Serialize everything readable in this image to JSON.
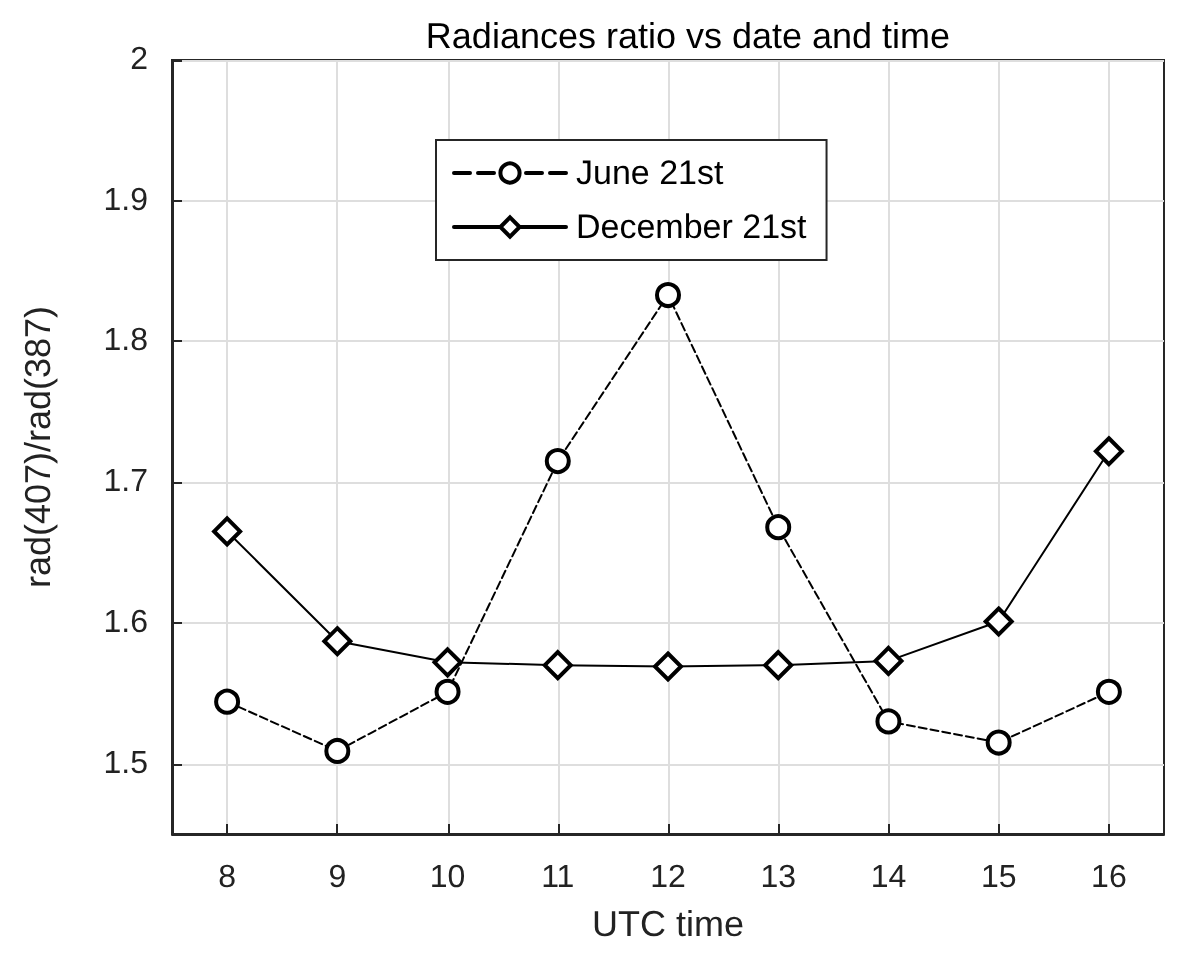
{
  "chart_data": {
    "type": "line",
    "title": "Radiances ratio vs date and time",
    "xlabel": "UTC time",
    "ylabel": "rad(407)/rad(387)",
    "x": [
      8,
      9,
      10,
      11,
      12,
      13,
      14,
      15,
      16
    ],
    "series": [
      {
        "name": "June 21st",
        "color": "#000000",
        "marker": "circle",
        "line_style": "dashed",
        "values": [
          1.544,
          1.509,
          1.551,
          1.715,
          1.833,
          1.668,
          1.53,
          1.515,
          1.551
        ]
      },
      {
        "name": "December 21st",
        "color": "#000000",
        "marker": "diamond",
        "line_style": "solid",
        "values": [
          1.665,
          1.587,
          1.572,
          1.57,
          1.569,
          1.57,
          1.573,
          1.601,
          1.722
        ]
      }
    ],
    "xlim": [
      7.5,
      16.5
    ],
    "xticks": [
      8,
      9,
      10,
      11,
      12,
      13,
      14,
      15,
      16
    ],
    "ylim": [
      1.45,
      2
    ],
    "yticks": [
      1.5,
      1.6,
      1.7,
      1.8,
      1.9,
      2
    ],
    "grid": true,
    "legend": "top"
  }
}
